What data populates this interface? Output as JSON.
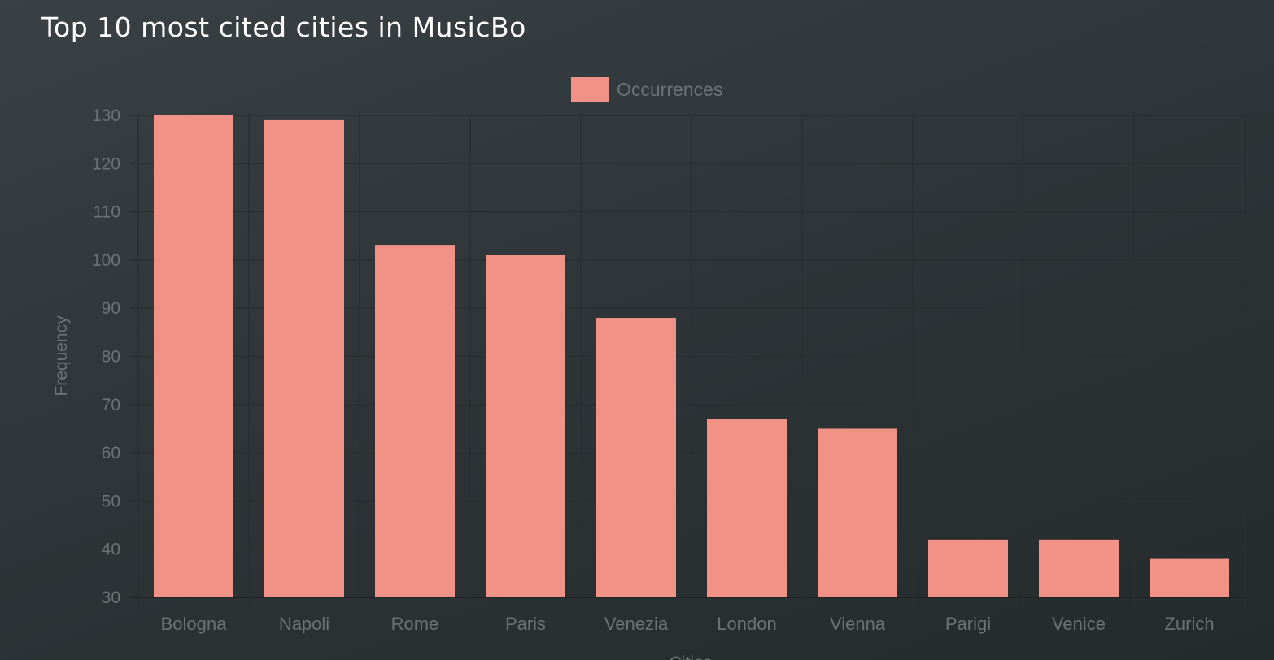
{
  "title": "Top 10 most cited cities in MusicBo",
  "chart_data": {
    "type": "bar",
    "categories": [
      "Bologna",
      "Napoli",
      "Rome",
      "Paris",
      "Venezia",
      "London",
      "Vienna",
      "Parigi",
      "Venice",
      "Zurich"
    ],
    "series": [
      {
        "name": "Occurrences",
        "values": [
          130,
          129,
          103,
          101,
          88,
          67,
          65,
          42,
          42,
          38
        ],
        "color": "#f09386"
      }
    ],
    "xlabel": "Cities",
    "ylabel": "Frequency",
    "ylim": [
      30,
      130
    ],
    "yticks": [
      30,
      40,
      50,
      60,
      70,
      80,
      90,
      100,
      110,
      120,
      130
    ],
    "grid": true,
    "legend": "top-center"
  }
}
